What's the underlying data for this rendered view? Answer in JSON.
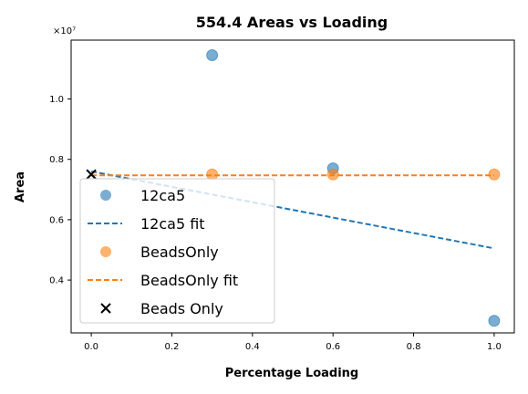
{
  "chart_data": {
    "type": "scatter",
    "title": "554.4 Areas vs Loading",
    "xlabel": "Percentage Loading",
    "ylabel": "Area",
    "offset_text": "×10⁷",
    "xlim": [
      -0.05,
      1.05
    ],
    "ylim": [
      0.225,
      1.195
    ],
    "xticks": [
      0.0,
      0.2,
      0.4,
      0.6,
      0.8,
      1.0
    ],
    "xtick_labels": [
      "0.0",
      "0.2",
      "0.4",
      "0.6",
      "0.8",
      "1.0"
    ],
    "yticks": [
      0.4,
      0.6,
      0.8,
      1.0
    ],
    "ytick_labels": [
      "0.4",
      "0.6",
      "0.8",
      "1.0"
    ],
    "grid": false,
    "legend_position": "lower-left",
    "series": [
      {
        "name": "12ca5",
        "kind": "scatter",
        "color": "#1f77b4",
        "x": [
          0.3,
          0.6,
          1.0
        ],
        "y": [
          1.145,
          0.77,
          0.265
        ]
      },
      {
        "name": "12ca5 fit",
        "kind": "line",
        "style": "dashed",
        "color": "#1f77b4",
        "x": [
          0.0,
          1.0
        ],
        "y": [
          0.76,
          0.505
        ]
      },
      {
        "name": "BeadsOnly",
        "kind": "scatter",
        "color": "#ff7f0e",
        "x": [
          0.3,
          0.6,
          1.0
        ],
        "y": [
          0.75,
          0.75,
          0.75
        ]
      },
      {
        "name": "BeadsOnly fit",
        "kind": "line",
        "style": "dashed",
        "color": "#ff7f0e",
        "x": [
          0.0,
          1.0
        ],
        "y": [
          0.747,
          0.747
        ]
      },
      {
        "name": "Beads Only",
        "kind": "marker-x",
        "color": "#000000",
        "x": [
          0.0
        ],
        "y": [
          0.75
        ]
      }
    ]
  }
}
